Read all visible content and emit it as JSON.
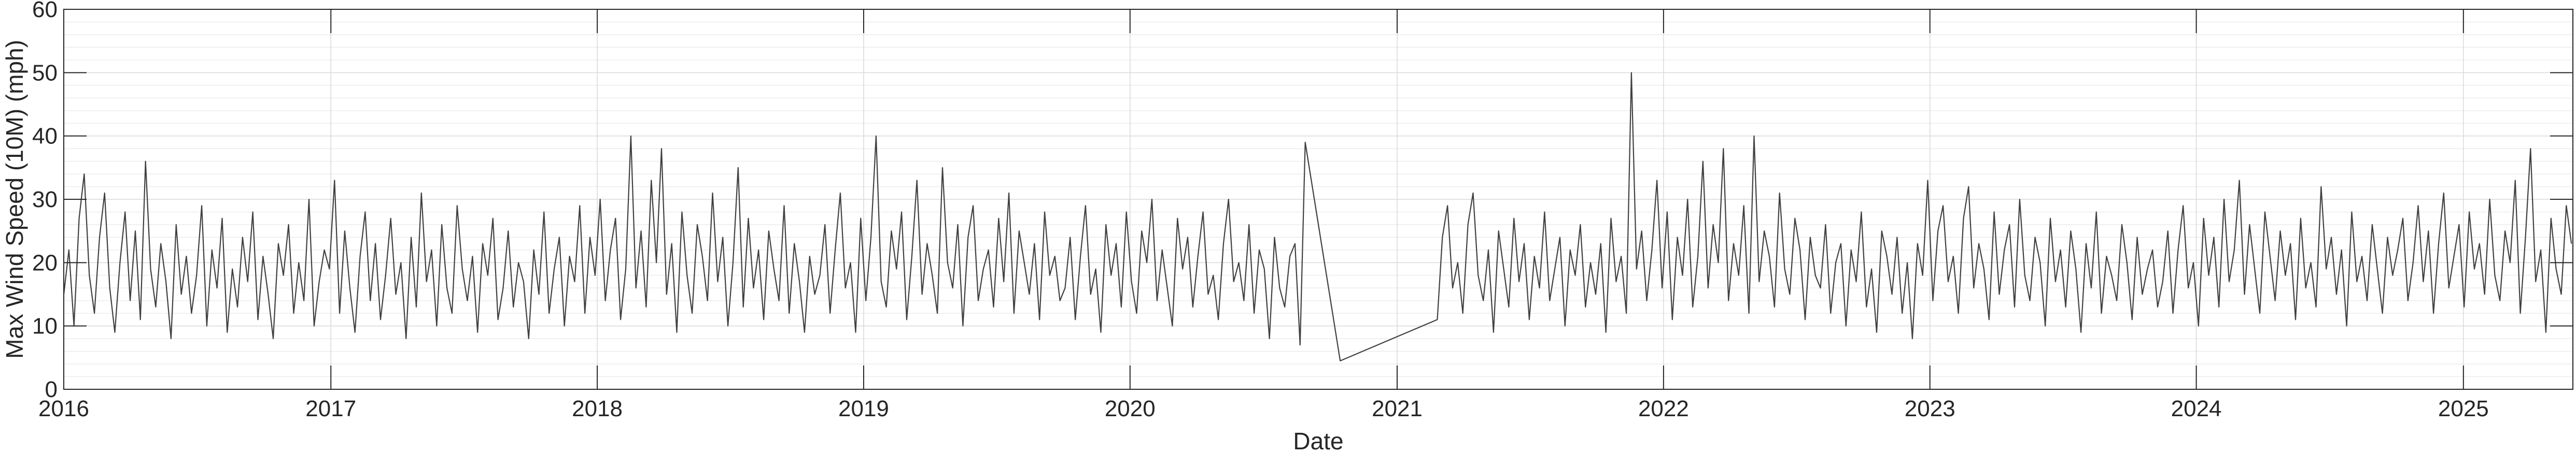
{
  "chart_data": {
    "type": "line",
    "xlabel": "Date",
    "ylabel": "Max Wind Speed (10M) (mph)",
    "ylim": [
      0,
      60
    ],
    "xlim": [
      "2016-01-01",
      "2025-05-31"
    ],
    "y_ticks": [
      0,
      10,
      20,
      30,
      40,
      50,
      60
    ],
    "x_ticks": [
      "2016-01-01",
      "2017-01-01",
      "2018-01-01",
      "2019-01-01",
      "2020-01-01",
      "2021-01-01",
      "2022-01-01",
      "2023-01-01",
      "2024-01-01",
      "2025-01-01"
    ],
    "x_tick_labels": [
      "2016",
      "2017",
      "2018",
      "2019",
      "2020",
      "2021",
      "2022",
      "2023",
      "2024",
      "2025"
    ],
    "grid": true,
    "minor_grid_y": true,
    "line_color": "#404040",
    "series": [
      {
        "resolution": "weekly",
        "segments": [
          {
            "start": "2016-01-01",
            "values": [
              15,
              22,
              10,
              27,
              34,
              18,
              12,
              24,
              31,
              16,
              9,
              20,
              28,
              14,
              25,
              11,
              36,
              19,
              13,
              23,
              17,
              8,
              26,
              15,
              21,
              12,
              18,
              29,
              10,
              22,
              16,
              27,
              9,
              19,
              13,
              24,
              17,
              28,
              11,
              21,
              15,
              8,
              23,
              18,
              26,
              12,
              20,
              14,
              30,
              10,
              17,
              22,
              19,
              33,
              12,
              25,
              16,
              9,
              21,
              28,
              14,
              23,
              11,
              18,
              27,
              15,
              20,
              8,
              24,
              13,
              31,
              17,
              22,
              10,
              26,
              16,
              12,
              29,
              19,
              14,
              21,
              9,
              23,
              18,
              27,
              11,
              16,
              25,
              13,
              20,
              17,
              8,
              22,
              15,
              28,
              12,
              19,
              24,
              10,
              21,
              17,
              29,
              12,
              24,
              18,
              30,
              14,
              22,
              27,
              11,
              19,
              40,
              16,
              25,
              13,
              33,
              20,
              38,
              15,
              23,
              9,
              28,
              18,
              12,
              26,
              21,
              14,
              31,
              17,
              24,
              10,
              20,
              35,
              13,
              27,
              16,
              22,
              11,
              25,
              19,
              14,
              29,
              12,
              23,
              17,
              9,
              21,
              15,
              18,
              26,
              12,
              22,
              31,
              16,
              20,
              9,
              27,
              14,
              24,
              40,
              17,
              13,
              25,
              19,
              28,
              11,
              21,
              33,
              15,
              23,
              18,
              12,
              35,
              20,
              16,
              26,
              10,
              24,
              29,
              14,
              19,
              22,
              13,
              27,
              17,
              31,
              12,
              25,
              20,
              15,
              23,
              11,
              28,
              18,
              21,
              14,
              16,
              24,
              11,
              21,
              29,
              15,
              19,
              9,
              26,
              18,
              23,
              13,
              28,
              17,
              12,
              25,
              20,
              30,
              14,
              22,
              16,
              10,
              27,
              19,
              24,
              13,
              21,
              28,
              15,
              18,
              11,
              23,
              30,
              17,
              20,
              14,
              26,
              12,
              22,
              19,
              8,
              24,
              16,
              13,
              21,
              23,
              7,
              39
            ]
          },
          {
            "start": "2020-10-15",
            "values": [
              4.5
            ]
          },
          {
            "start": "2021-02-25",
            "values": [
              11,
              24,
              29,
              16,
              20,
              12,
              26,
              31,
              18,
              14,
              22,
              9,
              25,
              19,
              13,
              27,
              17,
              23,
              11,
              21,
              16,
              28,
              14,
              19,
              24,
              10,
              22,
              18,
              26,
              13,
              20,
              15,
              23,
              9,
              27,
              17,
              21,
              12,
              50,
              19,
              25,
              14,
              22,
              33,
              16,
              28,
              11,
              24,
              18,
              30,
              13,
              21,
              36,
              16,
              26,
              20,
              38,
              14,
              23,
              18,
              29,
              12,
              40,
              17,
              25,
              21,
              13,
              31,
              19,
              15,
              27,
              22,
              11,
              24,
              18,
              16,
              26,
              12,
              20,
              23,
              10,
              22,
              17,
              28,
              13,
              19,
              9,
              25,
              21,
              15,
              24,
              12,
              20,
              8,
              23,
              18,
              33,
              14,
              25,
              29,
              17,
              21,
              12,
              27,
              32,
              16,
              23,
              19,
              11,
              28,
              15,
              22,
              26,
              13,
              30,
              18,
              14,
              24,
              20,
              10,
              27,
              17,
              22,
              13,
              25,
              19,
              9,
              23,
              16,
              28,
              12,
              21,
              18,
              14,
              26,
              20,
              11,
              24,
              15,
              19,
              22,
              13,
              17,
              25,
              12,
              22,
              29,
              16,
              20,
              10,
              27,
              18,
              24,
              13,
              30,
              17,
              22,
              33,
              15,
              26,
              19,
              12,
              28,
              21,
              14,
              25,
              18,
              23,
              11,
              27,
              16,
              20,
              13,
              32,
              19,
              24,
              15,
              22,
              10,
              28,
              17,
              21,
              14,
              26,
              19,
              12,
              24,
              18,
              22,
              27,
              14,
              20,
              29,
              17,
              25,
              12,
              23,
              31,
              16,
              21,
              26,
              13,
              28,
              19,
              23,
              15,
              30,
              18,
              14,
              25,
              20,
              33,
              12,
              24,
              38,
              17,
              22,
              9,
              27,
              19,
              15,
              29,
              23,
              13,
              26,
              34
            ]
          }
        ]
      }
    ]
  }
}
